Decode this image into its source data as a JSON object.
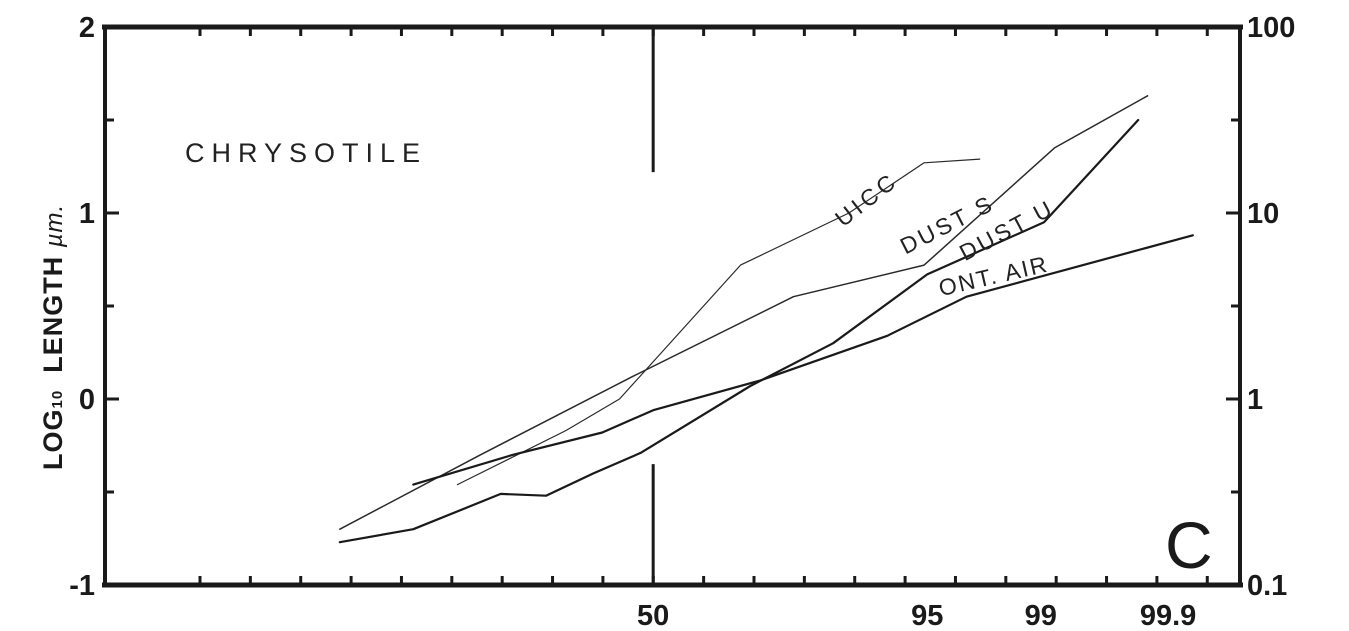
{
  "chart_data": {
    "type": "line",
    "title": "CHRYSOTILE",
    "panel_label": "C",
    "ylabel": {
      "prefix": "LOG",
      "subscript": "10",
      "main": "LENGTH",
      "unit": "µm."
    },
    "y_left_ticks": [
      {
        "value": 2,
        "label": "2"
      },
      {
        "value": 1,
        "label": "1"
      },
      {
        "value": 0,
        "label": "0"
      },
      {
        "value": -1,
        "label": "-1"
      }
    ],
    "y_right_ticks": [
      {
        "value": 2,
        "label": "100"
      },
      {
        "value": 1,
        "label": "10"
      },
      {
        "value": 0,
        "label": "1"
      },
      {
        "value": -1,
        "label": "0.1"
      }
    ],
    "x_scale": "probability",
    "x_ticks": [
      {
        "value": 50,
        "label": "50"
      },
      {
        "value": 95,
        "label": "95"
      },
      {
        "value": 99,
        "label": "99"
      },
      {
        "value": 99.9,
        "label": "99.9"
      }
    ],
    "ylim": [
      -1,
      2
    ],
    "series": [
      {
        "name": "UICC",
        "color": "#2a2a2a",
        "width": 1.2,
        "points": [
          [
            12,
            -0.46
          ],
          [
            30,
            -0.17
          ],
          [
            42,
            0.0
          ],
          [
            70,
            0.72
          ],
          [
            88,
            1.0
          ],
          [
            94.8,
            1.27
          ],
          [
            97.5,
            1.29
          ]
        ]
      },
      {
        "name": "DUST S",
        "color": "#2a2a2a",
        "width": 1.5,
        "points": [
          [
            3,
            -0.7
          ],
          [
            15,
            -0.3
          ],
          [
            45,
            0.12
          ],
          [
            80,
            0.55
          ],
          [
            94.8,
            0.72
          ],
          [
            99.2,
            1.35
          ],
          [
            99.85,
            1.63
          ]
        ]
      },
      {
        "name": "DUST U",
        "color": "#1a1a1a",
        "width": 2.2,
        "points": [
          [
            3,
            -0.77
          ],
          [
            7.5,
            -0.7
          ],
          [
            18,
            -0.51
          ],
          [
            26,
            -0.52
          ],
          [
            36,
            -0.4
          ],
          [
            47,
            -0.29
          ],
          [
            72,
            0.07
          ],
          [
            86,
            0.3
          ],
          [
            95,
            0.67
          ],
          [
            99.05,
            0.95
          ],
          [
            99.82,
            1.5
          ]
        ]
      },
      {
        "name": "ONT. AIR",
        "color": "#1a1a1a",
        "width": 2.2,
        "points": [
          [
            7.5,
            -0.46
          ],
          [
            20,
            -0.3
          ],
          [
            38,
            -0.18
          ],
          [
            50,
            -0.06
          ],
          [
            74,
            0.1
          ],
          [
            92,
            0.34
          ],
          [
            97,
            0.55
          ],
          [
            99.94,
            0.88
          ]
        ]
      }
    ],
    "series_labels": [
      {
        "name": "UICC",
        "x": 90.5,
        "y": 1.04,
        "angle": -38,
        "ls": 4
      },
      {
        "name": "DUST S",
        "x": 96.3,
        "y": 0.9,
        "angle": -27,
        "ls": 3
      },
      {
        "name": "DUST U",
        "x": 98.4,
        "y": 0.87,
        "angle": -28,
        "ls": 3
      },
      {
        "name": "ONT. AIR",
        "x": 98.0,
        "y": 0.62,
        "angle": -13,
        "ls": 2
      }
    ],
    "grid": false
  }
}
